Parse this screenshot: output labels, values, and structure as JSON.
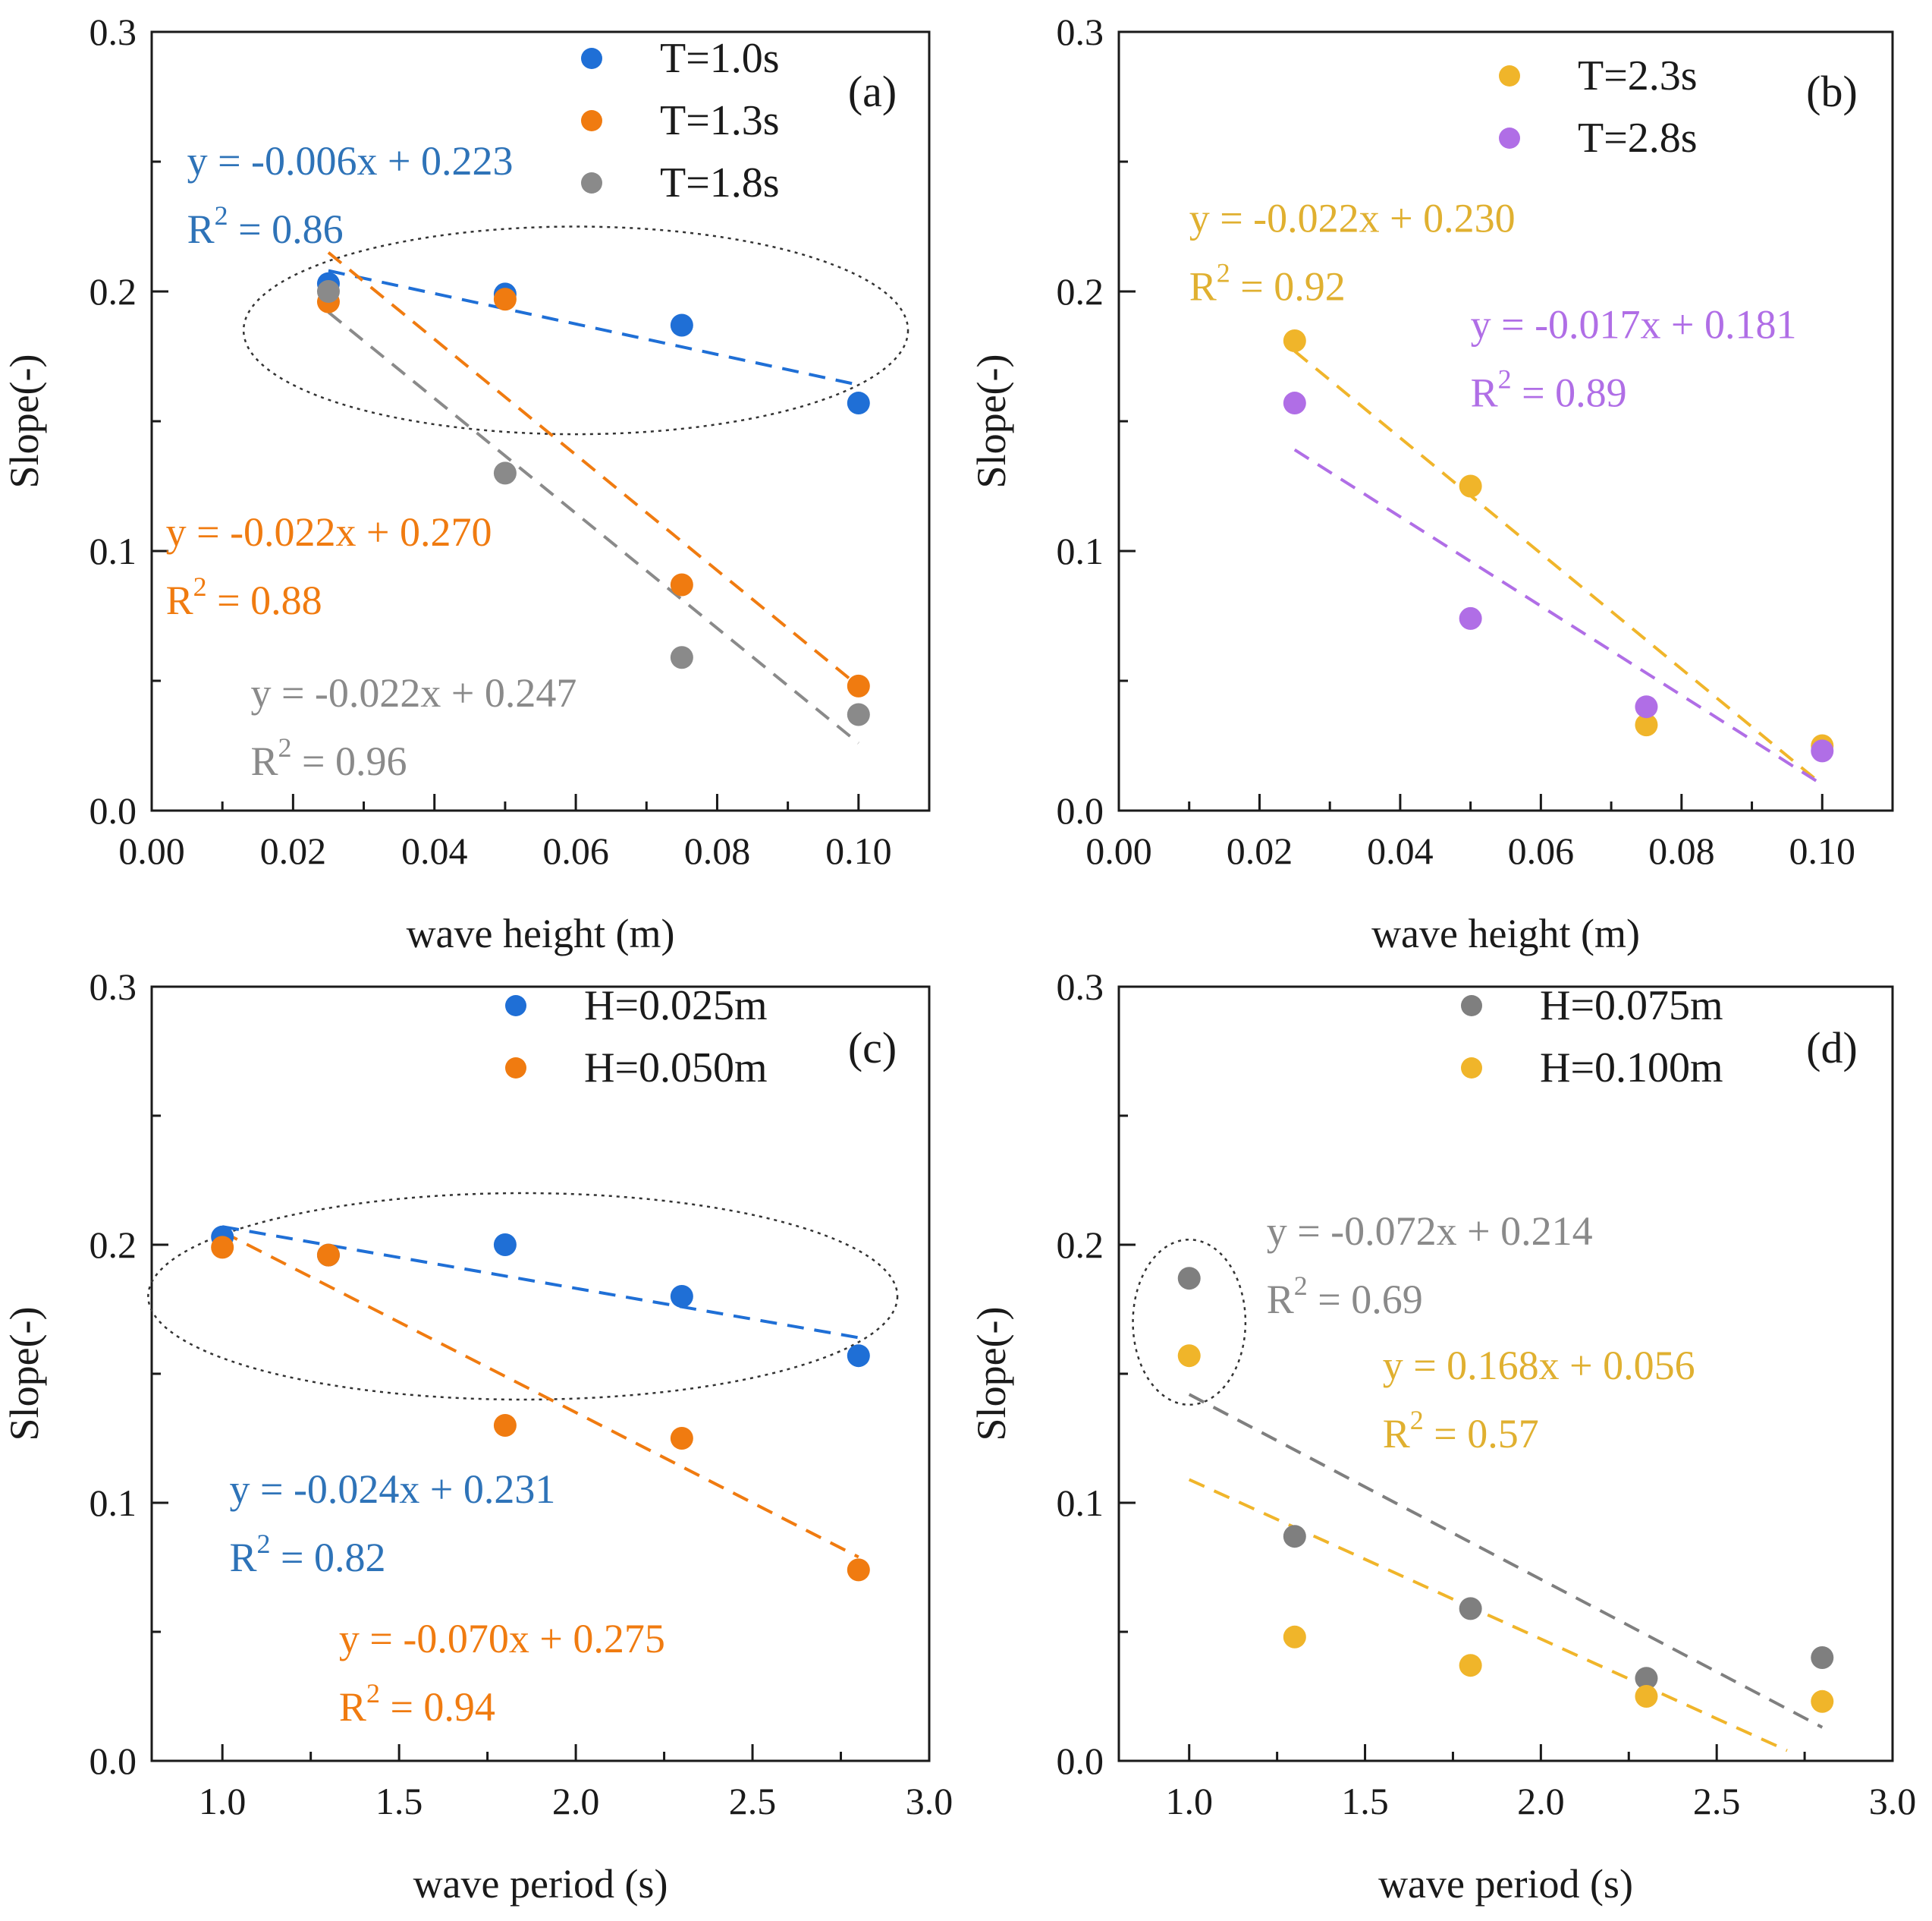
{
  "chart_data": [
    {
      "type": "scatter",
      "panel": "(a)",
      "xlabel": "wave height (m)",
      "ylabel": "Slope(-)",
      "xlim": [
        0.0,
        0.11
      ],
      "ylim": [
        0.0,
        0.3
      ],
      "xticks": [
        0.0,
        0.02,
        0.04,
        0.06,
        0.08,
        0.1
      ],
      "xtick_labels": [
        "0.00",
        "0.02",
        "0.04",
        "0.06",
        "0.08",
        "0.10"
      ],
      "yticks": [
        0.0,
        0.1,
        0.2,
        0.3
      ],
      "ytick_labels": [
        "0.0",
        "0.1",
        "0.2",
        "0.3"
      ],
      "legend_position": "top-center",
      "series": [
        {
          "name": "T=1.0s",
          "color": "#1f6fd6",
          "x": [
            0.025,
            0.05,
            0.075,
            0.1
          ],
          "y": [
            0.203,
            0.199,
            0.187,
            0.157
          ],
          "fit": {
            "x_range": [
              0.025,
              0.1
            ],
            "y_range": [
              0.208,
              0.164
            ]
          }
        },
        {
          "name": "T=1.3s",
          "color": "#f07b10",
          "x": [
            0.025,
            0.05,
            0.075,
            0.1
          ],
          "y": [
            0.196,
            0.197,
            0.087,
            0.048
          ],
          "fit": {
            "x_range": [
              0.025,
              0.1
            ],
            "y_range": [
              0.215,
              0.048
            ]
          }
        },
        {
          "name": "T=1.8s",
          "color": "#8a8a8a",
          "x": [
            0.025,
            0.05,
            0.075,
            0.1
          ],
          "y": [
            0.2,
            0.13,
            0.059,
            0.037
          ],
          "fit": {
            "x_range": [
              0.025,
              0.1
            ],
            "y_range": [
              0.192,
              0.026
            ]
          }
        }
      ],
      "annotations": [
        {
          "line1": "y = -0.006x + 0.223",
          "line2_base": "R",
          "line2_sup": "2",
          "line2_rest": " = 0.86",
          "color": "#2e73b8",
          "anchor": [
            0.005,
            0.245
          ]
        },
        {
          "line1": "y = -0.022x + 0.270",
          "line2_base": "R",
          "line2_sup": "2",
          "line2_rest": " = 0.88",
          "color": "#f07b10",
          "anchor": [
            0.002,
            0.102
          ]
        },
        {
          "line1": "y = -0.022x + 0.247",
          "line2_base": "R",
          "line2_sup": "2",
          "line2_rest": " = 0.96",
          "color": "#8a8a8a",
          "anchor": [
            0.014,
            0.04
          ]
        }
      ],
      "highlight_ellipse": {
        "center": [
          0.06,
          0.185
        ],
        "radii": [
          0.047,
          0.04
        ]
      }
    },
    {
      "type": "scatter",
      "panel": "(b)",
      "xlabel": "wave height (m)",
      "ylabel": "Slope(-)",
      "xlim": [
        0.0,
        0.11
      ],
      "ylim": [
        0.0,
        0.3
      ],
      "xticks": [
        0.0,
        0.02,
        0.04,
        0.06,
        0.08,
        0.1
      ],
      "xtick_labels": [
        "0.00",
        "0.02",
        "0.04",
        "0.06",
        "0.08",
        "0.10"
      ],
      "yticks": [
        0.0,
        0.1,
        0.2,
        0.3
      ],
      "ytick_labels": [
        "0.0",
        "0.1",
        "0.2",
        "0.3"
      ],
      "legend_position": "top-center",
      "series": [
        {
          "name": "T=2.3s",
          "color": "#f0b52a",
          "x": [
            0.025,
            0.05,
            0.075,
            0.1
          ],
          "y": [
            0.181,
            0.125,
            0.033,
            0.025
          ],
          "fit": {
            "x_range": [
              0.025,
              0.1
            ],
            "y_range": [
              0.177,
              0.01
            ]
          }
        },
        {
          "name": "T=2.8s",
          "color": "#b06ee6",
          "x": [
            0.025,
            0.05,
            0.075,
            0.1
          ],
          "y": [
            0.157,
            0.074,
            0.04,
            0.023
          ],
          "fit": {
            "x_range": [
              0.025,
              0.1
            ],
            "y_range": [
              0.139,
              0.01
            ]
          }
        }
      ],
      "annotations": [
        {
          "line1": "y = -0.022x + 0.230",
          "line2_base": "R",
          "line2_sup": "2",
          "line2_rest": " = 0.92",
          "color": "#e0b030",
          "anchor": [
            0.01,
            0.223
          ]
        },
        {
          "line1": "y = -0.017x + 0.181",
          "line2_base": "R",
          "line2_sup": "2",
          "line2_rest": " = 0.89",
          "color": "#b06ee6",
          "anchor": [
            0.05,
            0.182
          ]
        }
      ]
    },
    {
      "type": "scatter",
      "panel": "(c)",
      "xlabel": "wave period (s)",
      "ylabel": "Slope(-)",
      "xlim": [
        0.8,
        3.0
      ],
      "ylim": [
        0.0,
        0.3
      ],
      "xticks": [
        1.0,
        1.5,
        2.0,
        2.5,
        3.0
      ],
      "xtick_labels": [
        "1.0",
        "1.5",
        "2.0",
        "2.5",
        "3.0"
      ],
      "yticks": [
        0.0,
        0.1,
        0.2,
        0.3
      ],
      "ytick_labels": [
        "0.0",
        "0.1",
        "0.2",
        "0.3"
      ],
      "legend_position": "top-center",
      "series": [
        {
          "name": "H=0.025m",
          "color": "#1f6fd6",
          "x": [
            1.0,
            1.3,
            1.8,
            2.3,
            2.8
          ],
          "y": [
            0.203,
            0.196,
            0.2,
            0.18,
            0.157
          ],
          "fit": {
            "x_range": [
              1.0,
              2.8
            ],
            "y_range": [
              0.207,
              0.164
            ]
          }
        },
        {
          "name": "H=0.050m",
          "color": "#f07b10",
          "x": [
            1.0,
            1.3,
            1.8,
            2.3,
            2.8
          ],
          "y": [
            0.199,
            0.196,
            0.13,
            0.125,
            0.074
          ],
          "fit": {
            "x_range": [
              1.0,
              2.8
            ],
            "y_range": [
              0.205,
              0.079
            ]
          }
        }
      ],
      "annotations": [
        {
          "line1": "y = -0.024x + 0.231",
          "line2_base": "R",
          "line2_sup": "2",
          "line2_rest": " = 0.82",
          "color": "#2e73b8",
          "anchor": [
            1.02,
            0.1
          ]
        },
        {
          "line1": "y = -0.070x + 0.275",
          "line2_base": "R",
          "line2_sup": "2",
          "line2_rest": " = 0.94",
          "color": "#f07b10",
          "anchor": [
            1.33,
            0.042
          ]
        }
      ],
      "highlight_ellipse": {
        "center": [
          1.85,
          0.18
        ],
        "radii": [
          1.06,
          0.04
        ]
      }
    },
    {
      "type": "scatter",
      "panel": "(d)",
      "xlabel": "wave period (s)",
      "ylabel": "Slope(-)",
      "xlim": [
        0.8,
        3.0
      ],
      "ylim": [
        0.0,
        0.3
      ],
      "xticks": [
        1.0,
        1.5,
        2.0,
        2.5,
        3.0
      ],
      "xtick_labels": [
        "1.0",
        "1.5",
        "2.0",
        "2.5",
        "3.0"
      ],
      "yticks": [
        0.0,
        0.1,
        0.2,
        0.3
      ],
      "ytick_labels": [
        "0.0",
        "0.1",
        "0.2",
        "0.3"
      ],
      "legend_position": "top-center",
      "series": [
        {
          "name": "H=0.075m",
          "color": "#7f7f7f",
          "x": [
            1.0,
            1.3,
            1.8,
            2.3,
            2.8
          ],
          "y": [
            0.187,
            0.087,
            0.059,
            0.032,
            0.04
          ],
          "fit": {
            "x_range": [
              1.0,
              2.8
            ],
            "y_range": [
              0.142,
              0.013
            ]
          }
        },
        {
          "name": "H=0.100m",
          "color": "#f0b52a",
          "x": [
            1.0,
            1.3,
            1.8,
            2.3,
            2.8
          ],
          "y": [
            0.157,
            0.048,
            0.037,
            0.025,
            0.023
          ],
          "fit": {
            "x_range": [
              1.0,
              2.7
            ],
            "y_range": [
              0.109,
              0.004
            ]
          }
        }
      ],
      "annotations": [
        {
          "line1": "y = -0.072x + 0.214",
          "line2_base": "R",
          "line2_sup": "2",
          "line2_rest": " = 0.69",
          "color": "#8a8a8a",
          "anchor": [
            1.22,
            0.2
          ]
        },
        {
          "line1": "y = 0.168x + 0.056",
          "line2_base": "R",
          "line2_sup": "2",
          "line2_rest": " = 0.57",
          "color": "#e0b030",
          "anchor": [
            1.55,
            0.148
          ]
        }
      ],
      "highlight_ellipse": {
        "center": [
          1.0,
          0.17
        ],
        "radii": [
          0.16,
          0.032
        ]
      }
    }
  ]
}
